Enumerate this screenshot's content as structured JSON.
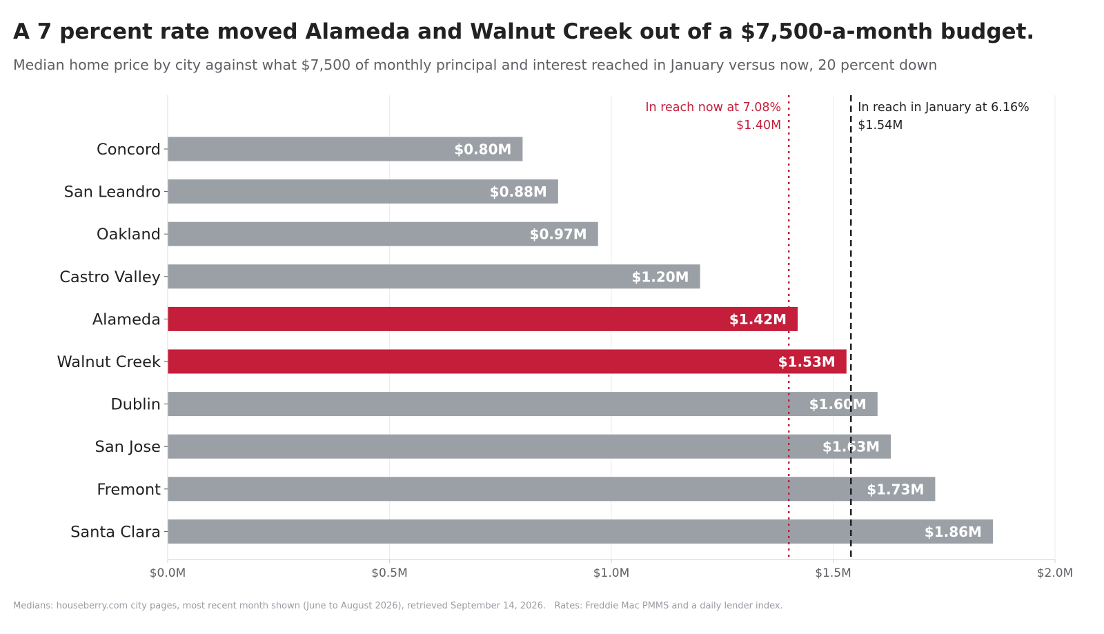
{
  "title": "A 7 percent rate moved Alameda and Walnut Creek out of a $7,500-a-month budget.",
  "subtitle": "Median home price by city against what $7,500 of monthly principal and interest reached in January versus now, 20 percent down",
  "footnote": "Medians: houseberry.com city pages, most recent month shown (June to August 2026), retrieved September 14, 2026.   Rates: Freddie Mac PMMS and a daily lender index.",
  "colors": {
    "bar_default": "#9aa0a6",
    "bar_highlight": "#c41e3a",
    "now_line": "#c41e3a",
    "january_line": "#222222",
    "text": "#222222",
    "tick_text": "#5f6066",
    "grid": "#ececec"
  },
  "chart_data": {
    "type": "bar",
    "orientation": "horizontal",
    "categories": [
      "Concord",
      "San Leandro",
      "Oakland",
      "Castro Valley",
      "Alameda",
      "Walnut Creek",
      "Dublin",
      "San Jose",
      "Fremont",
      "Santa Clara"
    ],
    "values": [
      0.8,
      0.88,
      0.97,
      1.2,
      1.42,
      1.53,
      1.6,
      1.63,
      1.73,
      1.86
    ],
    "value_labels": [
      "$0.80M",
      "$0.88M",
      "$0.97M",
      "$1.20M",
      "$1.42M",
      "$1.53M",
      "$1.60M",
      "$1.63M",
      "$1.73M",
      "$1.86M"
    ],
    "highlighted": [
      "Alameda",
      "Walnut Creek"
    ],
    "unit": "millions of dollars",
    "xlim": [
      0,
      2.0
    ],
    "xticks": [
      0,
      0.5,
      1.0,
      1.5,
      2.0
    ],
    "xtick_labels": [
      "$0.0M",
      "$0.5M",
      "$1.0M",
      "$1.5M",
      "$2.0M"
    ],
    "grid": "vertical",
    "reference_lines": [
      {
        "value": 1.4,
        "label": "In reach now at 7.08%",
        "value_label": "$1.40M",
        "style": "dotted",
        "color": "#c41e3a",
        "label_side": "left"
      },
      {
        "value": 1.54,
        "label": "In reach in January at 6.16%",
        "value_label": "$1.54M",
        "style": "dashed",
        "color": "#222222",
        "label_side": "right"
      }
    ]
  }
}
